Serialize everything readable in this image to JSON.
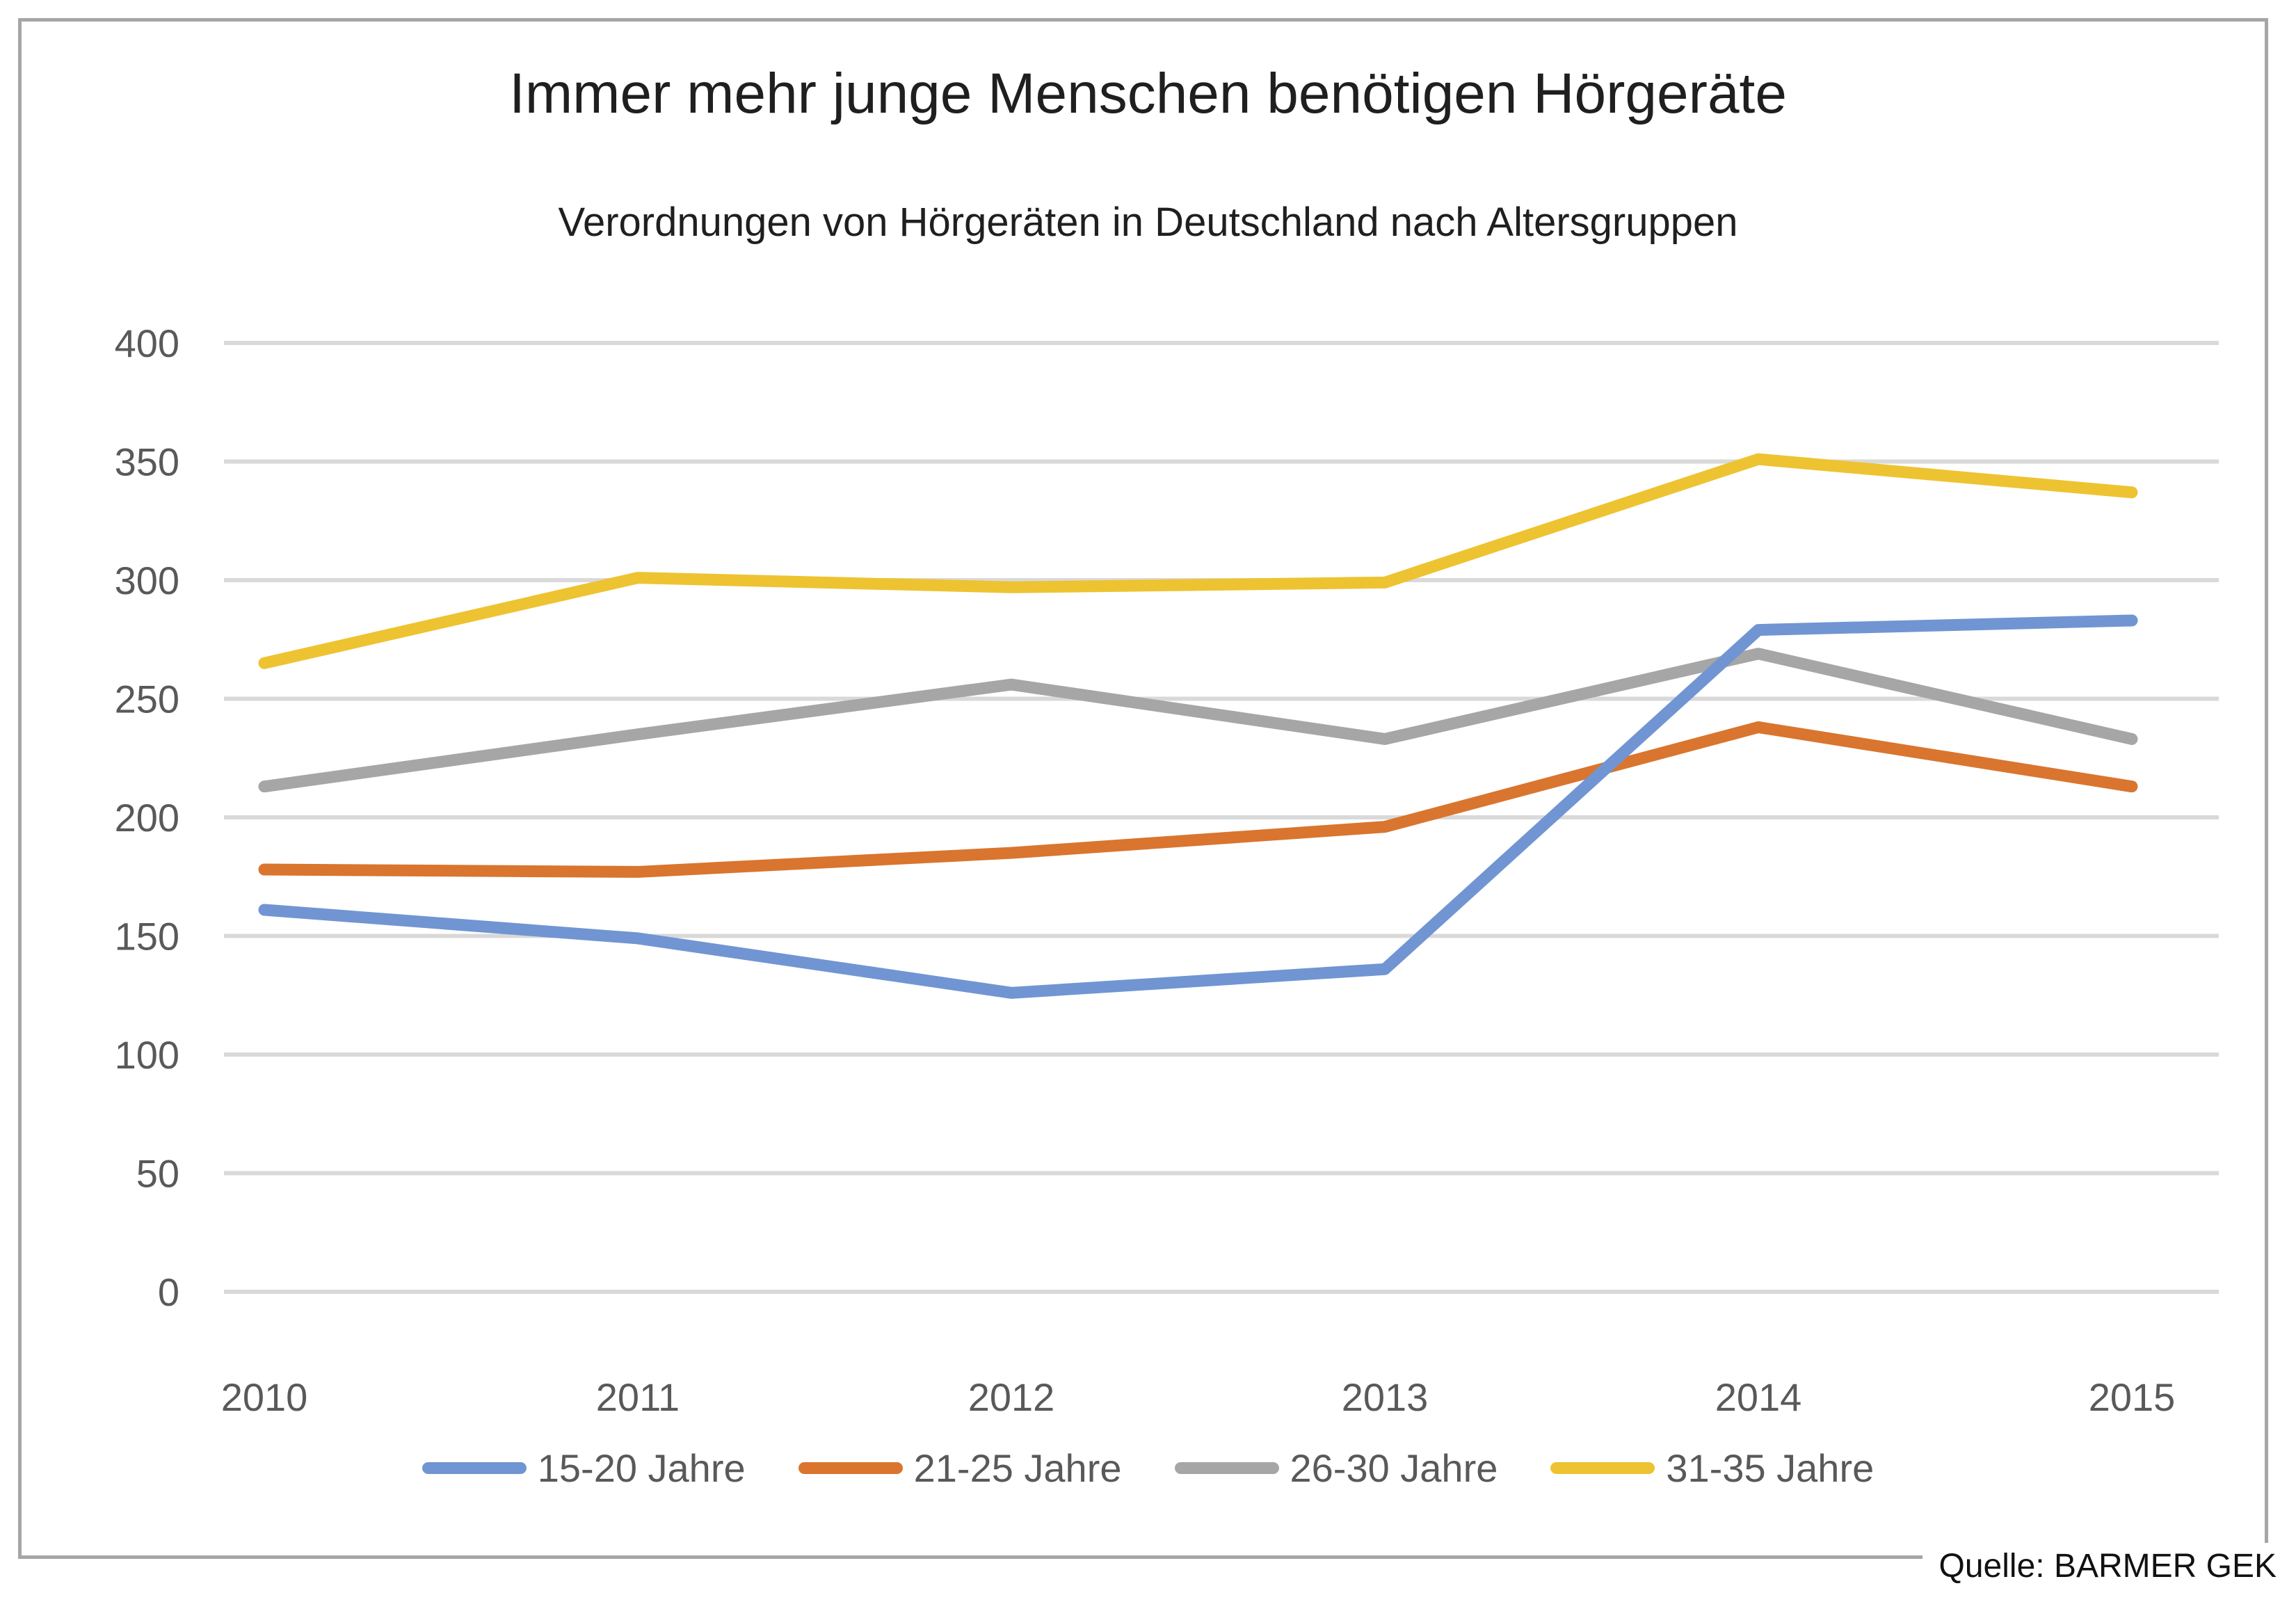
{
  "title": "Immer mehr junge Menschen benötigen Hörgeräte",
  "subtitle": "Verordnungen von Hörgeräten in Deutschland nach Altersgruppen",
  "source": "Quelle: BARMER GEK",
  "colors": {
    "grid": "#d9d9d9",
    "frame": "#a6a6a6",
    "axis_text": "#595959"
  },
  "chart_data": {
    "type": "line",
    "title": "Immer mehr junge Menschen benötigen Hörgeräte",
    "subtitle": "Verordnungen von Hörgeräten in Deutschland nach Altersgruppen",
    "categories": [
      "2010",
      "2011",
      "2012",
      "2013",
      "2014",
      "2015"
    ],
    "series": [
      {
        "name": "15-20 Jahre",
        "color": "#7195D2",
        "values": [
          161,
          149,
          126,
          136,
          279,
          283
        ]
      },
      {
        "name": "21-25 Jahre",
        "color": "#D9752E",
        "values": [
          178,
          177,
          185,
          196,
          238,
          213
        ]
      },
      {
        "name": "26-30 Jahre",
        "color": "#A6A6A6",
        "values": [
          213,
          235,
          256,
          233,
          269,
          233
        ]
      },
      {
        "name": "31-35 Jahre",
        "color": "#EDC331",
        "values": [
          265,
          301,
          297,
          299,
          351,
          337
        ]
      }
    ],
    "ylim": [
      0,
      400
    ],
    "yticks": [
      400,
      350,
      300,
      250,
      200,
      150,
      100,
      50,
      0
    ],
    "xlabel": "",
    "ylabel": "",
    "grid": true,
    "legend_position": "bottom",
    "source": "Quelle: BARMER GEK"
  }
}
